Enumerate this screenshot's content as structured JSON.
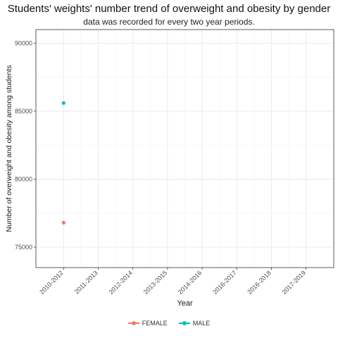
{
  "chart_data": {
    "type": "scatter",
    "title": "Students' weights' number trend of overweight and obesity by gender",
    "subtitle": "data was recorded for every two year periods.",
    "xlabel": "Year",
    "ylabel": "Number of overweight and obesity among students",
    "categories": [
      "2010-2012",
      "2011-2013",
      "2012-2014",
      "2013-2015",
      "2014-2016",
      "2016-2017",
      "2016-2018",
      "2017-2019"
    ],
    "ylim": [
      73500,
      91000
    ],
    "yticks": [
      75000,
      80000,
      85000,
      90000
    ],
    "grid": true,
    "legend_position": "bottom",
    "series": [
      {
        "name": "FEMALE",
        "color": "#F8766D",
        "points": [
          {
            "x": "2010-2012",
            "y": 76800
          }
        ]
      },
      {
        "name": "MALE",
        "color": "#00BFC4",
        "points": [
          {
            "x": "2010-2012",
            "y": 85600
          }
        ]
      }
    ]
  }
}
